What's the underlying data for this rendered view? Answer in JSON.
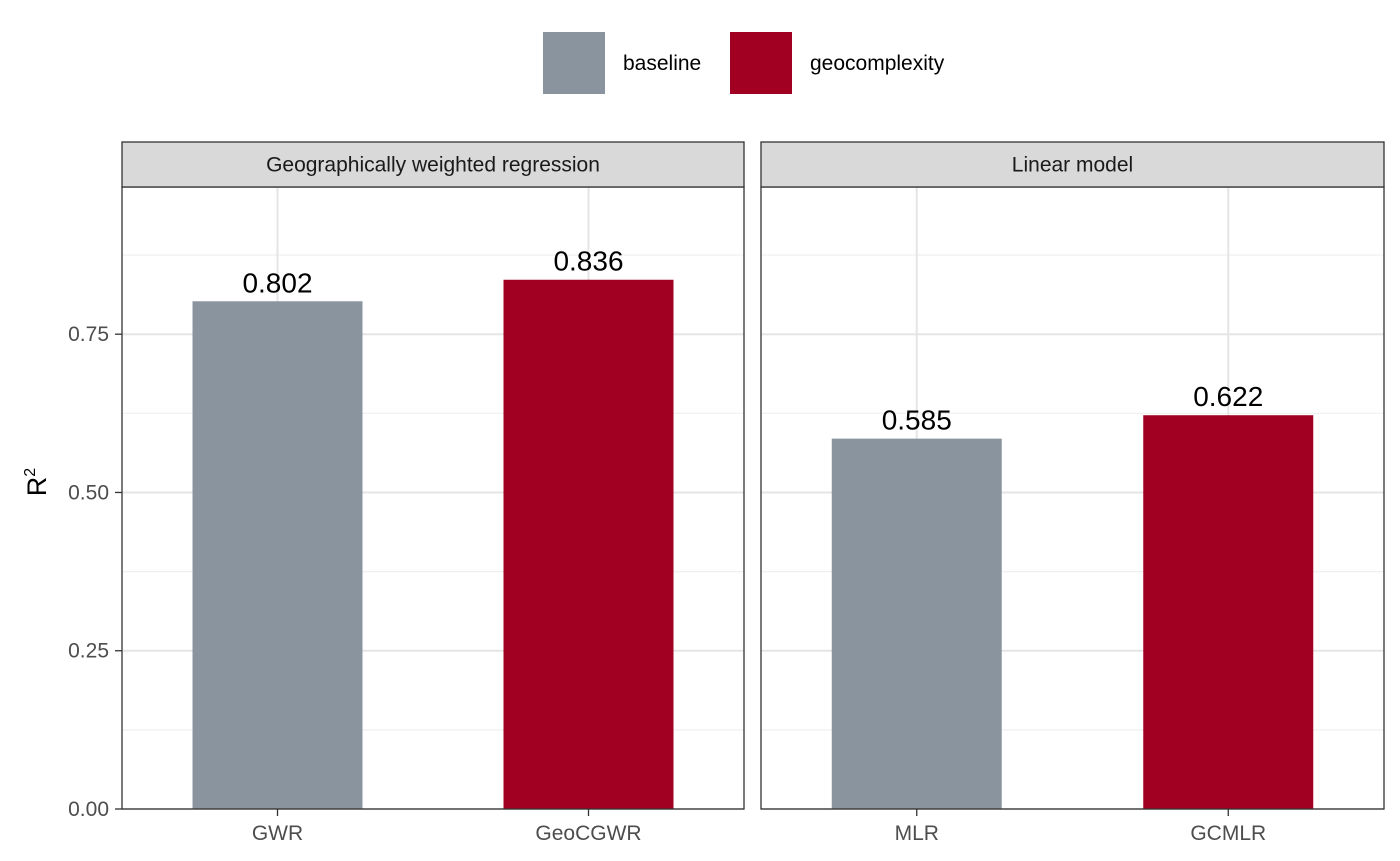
{
  "chart_data": {
    "type": "bar",
    "ylabel": "R",
    "ylabel_superscript": "2",
    "ylim": [
      0,
      0.9825
    ],
    "y_ticks": [
      0.0,
      0.25,
      0.5,
      0.75
    ],
    "y_tick_labels": [
      "0.00",
      "0.25",
      "0.50",
      "0.75"
    ],
    "grid": true,
    "legend": {
      "position": "top",
      "entries": [
        {
          "name": "baseline",
          "color": "#8a949f"
        },
        {
          "name": "geocomplexity",
          "color": "#a10023"
        }
      ]
    },
    "panels": [
      {
        "strip": "Geographically weighted regression",
        "categories": [
          "GWR",
          "GeoCGWR"
        ],
        "values": [
          0.802,
          0.836
        ],
        "labels": [
          "0.802",
          "0.836"
        ],
        "groups": [
          "baseline",
          "geocomplexity"
        ]
      },
      {
        "strip": "Linear model",
        "categories": [
          "MLR",
          "GCMLR"
        ],
        "values": [
          0.585,
          0.622
        ],
        "labels": [
          "0.585",
          "0.622"
        ],
        "groups": [
          "baseline",
          "geocomplexity"
        ]
      }
    ]
  }
}
